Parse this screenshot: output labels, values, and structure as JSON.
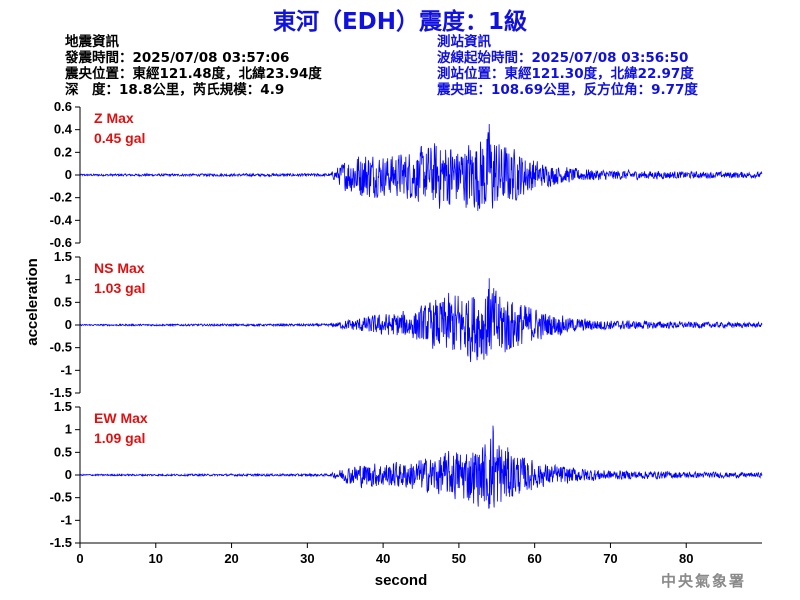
{
  "title": "東河（EDH）震度：1級",
  "quake_info": {
    "heading": "地震資訊",
    "origin_time": "發震時間：2025/07/08 03:57:06",
    "epicenter": "震央位置：東經121.48度，北緯23.94度",
    "depth_magnitude": "深　度：18.8公里，芮氏規模：4.9"
  },
  "station_info": {
    "heading": "測站資訊",
    "wave_start": "波線起始時間：2025/07/08 03:56:50",
    "location": "測站位置：東經121.30度，北緯22.97度",
    "distance_azimuth": "震央距：108.69公里，反方位角：9.77度"
  },
  "agency": "中央氣象署",
  "colors": {
    "title": "#1010e0",
    "trace": "#0000ff",
    "max_label": "#e01010",
    "axis": "#000000",
    "agency": "#8a8a8a"
  },
  "chart_data": {
    "type": "line",
    "xlabel": "second",
    "ylabel": "acceleration",
    "xlim": [
      0,
      90
    ],
    "x_ticks": [
      0,
      10,
      20,
      30,
      40,
      50,
      60,
      70,
      80
    ],
    "panels": [
      {
        "name": "Z",
        "max_label": "Z Max",
        "max_value": "0.45 gal",
        "ylim": [
          -0.6,
          0.6
        ],
        "y_ticks": [
          0.6,
          0.4,
          0.2,
          0,
          -0.2,
          -0.4,
          -0.6
        ],
        "y_tick_labels": [
          "0.6",
          "0.4",
          "0.2",
          "0",
          "-0.2",
          "-0.4",
          "-0.6"
        ],
        "envelope": [
          [
            0,
            0.01
          ],
          [
            33,
            0.015
          ],
          [
            34.5,
            0.12
          ],
          [
            36,
            0.22
          ],
          [
            38,
            0.24
          ],
          [
            40,
            0.2
          ],
          [
            42,
            0.22
          ],
          [
            44,
            0.26
          ],
          [
            46,
            0.3
          ],
          [
            48,
            0.36
          ],
          [
            50,
            0.3
          ],
          [
            52,
            0.36
          ],
          [
            54,
            0.45
          ],
          [
            55.5,
            0.33
          ],
          [
            57,
            0.28
          ],
          [
            59,
            0.2
          ],
          [
            61,
            0.12
          ],
          [
            65,
            0.07
          ],
          [
            70,
            0.05
          ],
          [
            80,
            0.035
          ],
          [
            90,
            0.03
          ]
        ]
      },
      {
        "name": "NS",
        "max_label": "NS Max",
        "max_value": "1.03 gal",
        "ylim": [
          -1.5,
          1.5
        ],
        "y_ticks": [
          1.5,
          1,
          0.5,
          0,
          -0.5,
          -1,
          -1.5
        ],
        "y_tick_labels": [
          "1.5",
          "1",
          "0.5",
          "0",
          "-0.5",
          "-1",
          "-1.5"
        ],
        "envelope": [
          [
            0,
            0.02
          ],
          [
            33,
            0.03
          ],
          [
            35,
            0.12
          ],
          [
            38,
            0.22
          ],
          [
            41,
            0.3
          ],
          [
            44,
            0.38
          ],
          [
            46,
            0.55
          ],
          [
            48,
            0.75
          ],
          [
            50,
            0.85
          ],
          [
            52,
            0.9
          ],
          [
            54,
            1.03
          ],
          [
            56,
            0.85
          ],
          [
            58,
            0.6
          ],
          [
            61,
            0.35
          ],
          [
            65,
            0.18
          ],
          [
            70,
            0.12
          ],
          [
            80,
            0.08
          ],
          [
            90,
            0.06
          ]
        ]
      },
      {
        "name": "EW",
        "max_label": "EW Max",
        "max_value": "1.09 gal",
        "ylim": [
          -1.5,
          1.5
        ],
        "y_ticks": [
          1.5,
          1,
          0.5,
          0,
          -0.5,
          -1,
          -1.5
        ],
        "y_tick_labels": [
          "1.5",
          "1",
          "0.5",
          "0",
          "-0.5",
          "-1",
          "-1.5"
        ],
        "envelope": [
          [
            0,
            0.02
          ],
          [
            33,
            0.03
          ],
          [
            35,
            0.2
          ],
          [
            37,
            0.3
          ],
          [
            40,
            0.32
          ],
          [
            43,
            0.35
          ],
          [
            46,
            0.45
          ],
          [
            49,
            0.6
          ],
          [
            51,
            0.7
          ],
          [
            53,
            0.75
          ],
          [
            54.5,
            1.09
          ],
          [
            56,
            0.8
          ],
          [
            58,
            0.5
          ],
          [
            61,
            0.3
          ],
          [
            65,
            0.2
          ],
          [
            70,
            0.12
          ],
          [
            80,
            0.08
          ],
          [
            90,
            0.06
          ]
        ]
      }
    ]
  }
}
